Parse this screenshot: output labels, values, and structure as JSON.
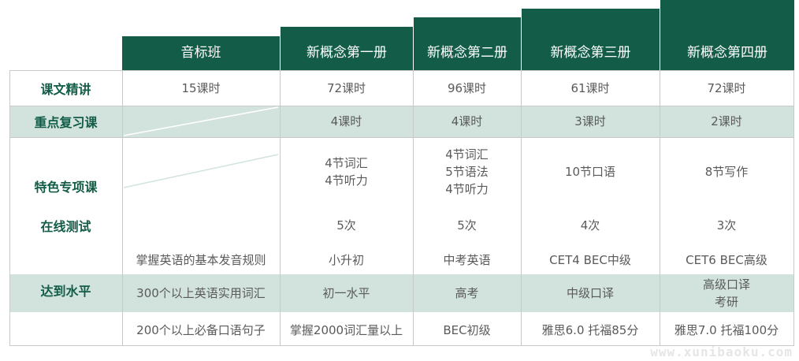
{
  "columns": [
    "音标班",
    "新概念第一册",
    "新概念第二册",
    "新概念第三册",
    "新概念第四册"
  ],
  "row_labels": {
    "lecture": "课文精讲",
    "review": "重点复习课",
    "special": "特色专项课",
    "online": "在线测试",
    "level": "达到水平"
  },
  "lecture": [
    "15课时",
    "72课时",
    "96课时",
    "61课时",
    "72课时"
  ],
  "review": [
    "",
    "4课时",
    "4课时",
    "3课时",
    "2课时"
  ],
  "special": [
    "",
    "4节词汇\n4节听力",
    "4节词汇\n5节语法\n4节听力",
    "10节口语",
    "8节写作"
  ],
  "online": [
    "",
    "5次",
    "5次",
    "4次",
    "3次"
  ],
  "level_1": [
    "掌握英语的基本发音规则",
    "小升初",
    "中考英语",
    "CET4 BEC中级",
    "CET6 BEC高级"
  ],
  "level_2": [
    "300个以上英语实用词汇",
    "初一水平",
    "高考",
    "中级口译",
    "高级口译\n考研"
  ],
  "level_3": [
    "200个以上必备口语句子",
    "掌握2000词汇量以上",
    "BEC初级",
    "雅思6.0 托福85分",
    "雅思7.0 托福100分"
  ],
  "watermark": "www.xunibaoku.com",
  "colors": {
    "header": "#135d48",
    "band": "#d2e3de",
    "label": "#135d48"
  }
}
